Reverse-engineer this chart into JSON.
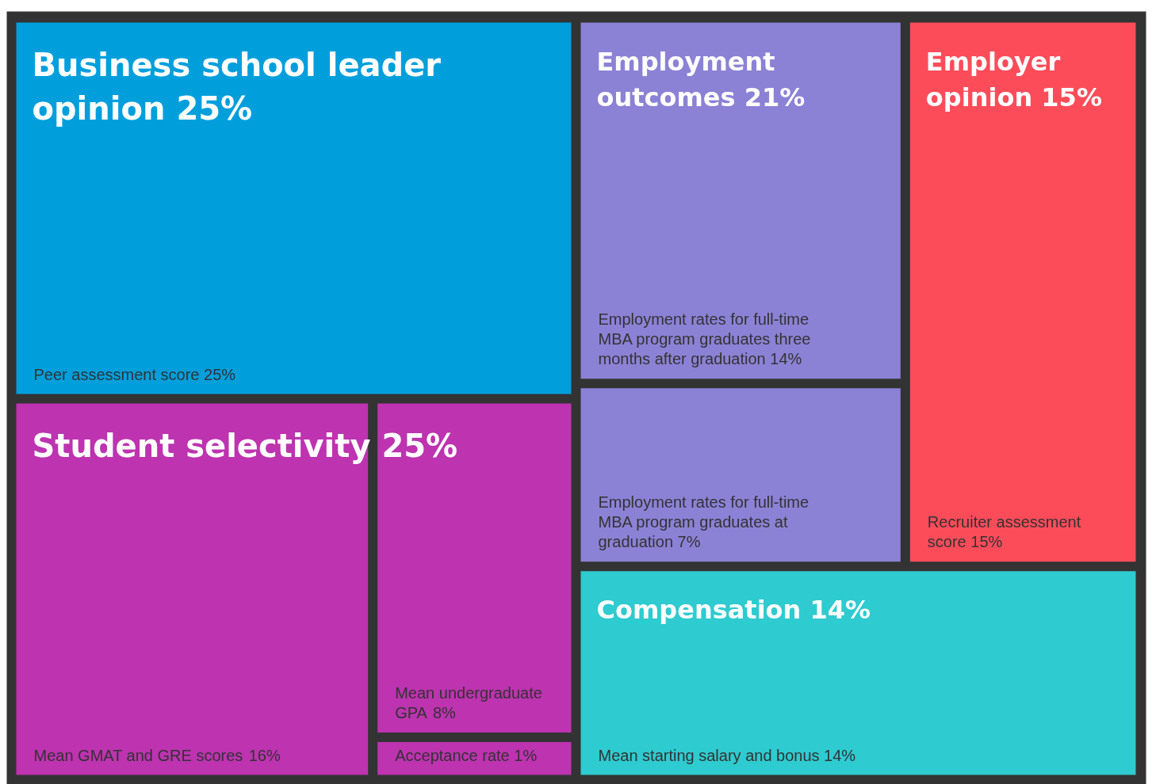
{
  "chart_data": {
    "type": "other",
    "categories": [
      "Peer assessment score",
      "Mean GMAT and GRE scores",
      "Mean undergraduate GPA",
      "Acceptance rate",
      "Employment rates for full-time MBA program graduates three months after graduation",
      "Employment rates for full-time MBA program graduates at graduation",
      "Recruiter assessment score",
      "Mean starting salary and bonus"
    ],
    "values": [
      25,
      16,
      8,
      1,
      14,
      7,
      15,
      14
    ],
    "value_labels": [
      "25%",
      "16%",
      "8%",
      "1%",
      "14%",
      "7%",
      "15%",
      "14%"
    ],
    "colors": [
      "#009fdc",
      "#bd33b0",
      "#bd33b0",
      "#bd33b0",
      "#8b82d6",
      "#8b82d6",
      "#fc4c5a",
      "#2ecbd0"
    ],
    "annotations": [
      "Business school leader opinion 25%",
      "Student selectivity 25%",
      "Employment outcomes 21%",
      "Employer opinion 15%",
      "Compensation 14%"
    ]
  }
}
